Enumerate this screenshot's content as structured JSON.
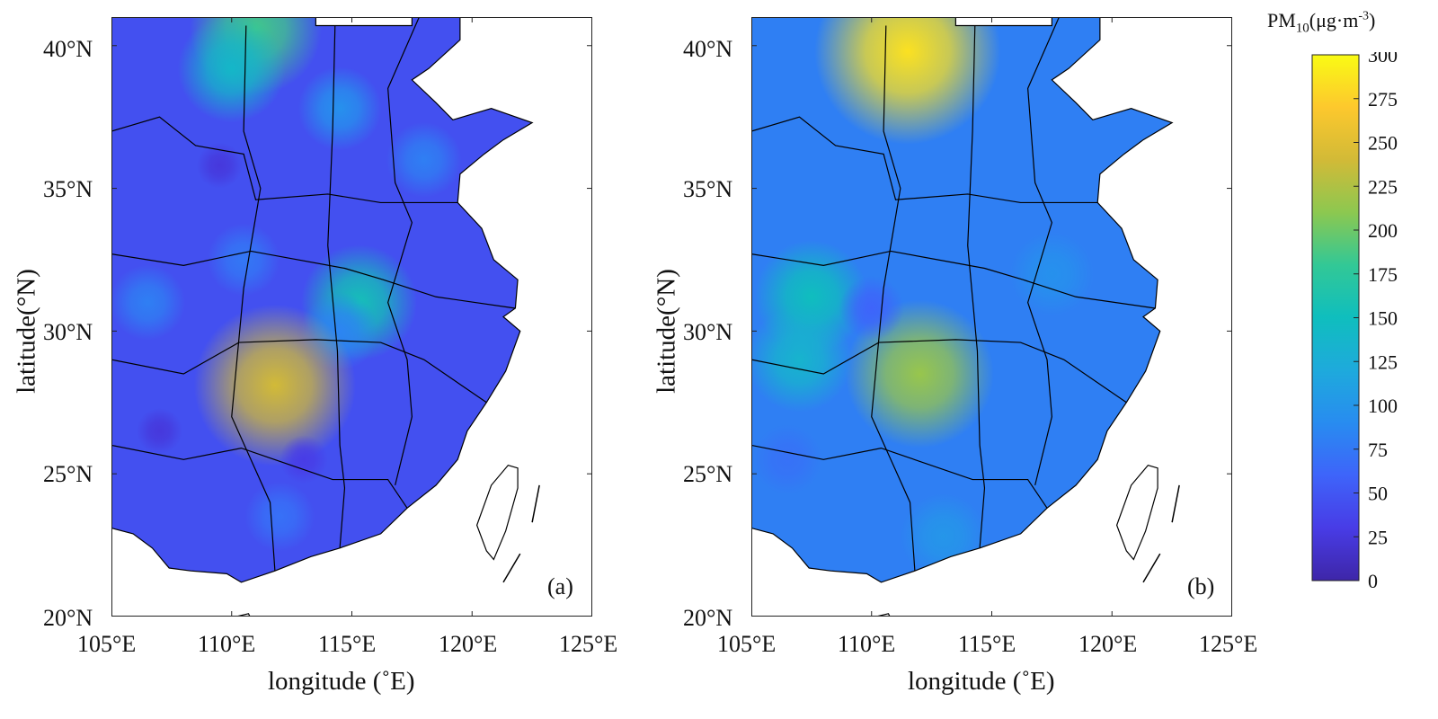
{
  "chart_data": {
    "type": "heatmap",
    "panels": [
      {
        "panel_label": "(a)",
        "xlabel": "longitude (˚E)",
        "ylabel": "latitude(°N)",
        "xlim": [
          105,
          125
        ],
        "ylim": [
          20,
          41
        ],
        "xticks": [
          105,
          110,
          115,
          120,
          125
        ],
        "xtick_labels": [
          "105°E",
          "110°E",
          "115°E",
          "120°E",
          "125°E"
        ],
        "yticks": [
          20,
          25,
          30,
          35,
          40
        ],
        "ytick_labels": [
          "20°N",
          "25°N",
          "30°N",
          "35°N",
          "40°N"
        ],
        "background_value": 45,
        "hotspots": [
          {
            "lon": 111.0,
            "lat": 40.6,
            "value": 185
          },
          {
            "lon": 110.0,
            "lat": 39.2,
            "value": 140
          },
          {
            "lon": 114.5,
            "lat": 37.8,
            "value": 95
          },
          {
            "lon": 115.3,
            "lat": 31.0,
            "value": 155
          },
          {
            "lon": 114.5,
            "lat": 30.0,
            "value": 85
          },
          {
            "lon": 111.8,
            "lat": 28.1,
            "value": 240
          },
          {
            "lon": 106.5,
            "lat": 31.0,
            "value": 80
          },
          {
            "lon": 110.5,
            "lat": 32.5,
            "value": 75
          },
          {
            "lon": 112.0,
            "lat": 23.5,
            "value": 70
          },
          {
            "lon": 118.0,
            "lat": 36.0,
            "value": 80
          },
          {
            "lon": 107.0,
            "lat": 26.5,
            "value": 25
          },
          {
            "lon": 113.0,
            "lat": 25.5,
            "value": 30
          },
          {
            "lon": 109.5,
            "lat": 35.8,
            "value": 25
          }
        ]
      },
      {
        "panel_label": "(b)",
        "xlabel": "longitude (˚E)",
        "ylabel": "latitude(°N)",
        "xlim": [
          105,
          125
        ],
        "ylim": [
          20,
          41
        ],
        "xticks": [
          105,
          110,
          115,
          120,
          125
        ],
        "xtick_labels": [
          "105°E",
          "110°E",
          "115°E",
          "120°E",
          "125°E"
        ],
        "yticks": [
          20,
          25,
          30,
          35,
          40
        ],
        "ytick_labels": [
          "20°N",
          "25°N",
          "30°N",
          "35°N",
          "40°N"
        ],
        "background_value": 80,
        "hotspots": [
          {
            "lon": 111.5,
            "lat": 39.8,
            "value": 285
          },
          {
            "lon": 112.0,
            "lat": 28.5,
            "value": 215
          },
          {
            "lon": 107.5,
            "lat": 31.2,
            "value": 150
          },
          {
            "lon": 107.0,
            "lat": 29.0,
            "value": 135
          },
          {
            "lon": 110.0,
            "lat": 30.8,
            "value": 60
          },
          {
            "lon": 113.0,
            "lat": 22.8,
            "value": 100
          },
          {
            "lon": 106.5,
            "lat": 25.5,
            "value": 70
          },
          {
            "lon": 117.5,
            "lat": 32.0,
            "value": 95
          }
        ]
      }
    ],
    "colorbar": {
      "title_prefix": "PM",
      "title_sub": "10",
      "title_unit": "(μg·m",
      "title_sup": "-3",
      "title_close": ")",
      "range": [
        0,
        300
      ],
      "ticks": [
        "300",
        "275",
        "250",
        "225",
        "200",
        "175",
        "150",
        "125",
        "100",
        "75",
        "50",
        "25",
        "0"
      ],
      "colormap": "parula"
    }
  }
}
